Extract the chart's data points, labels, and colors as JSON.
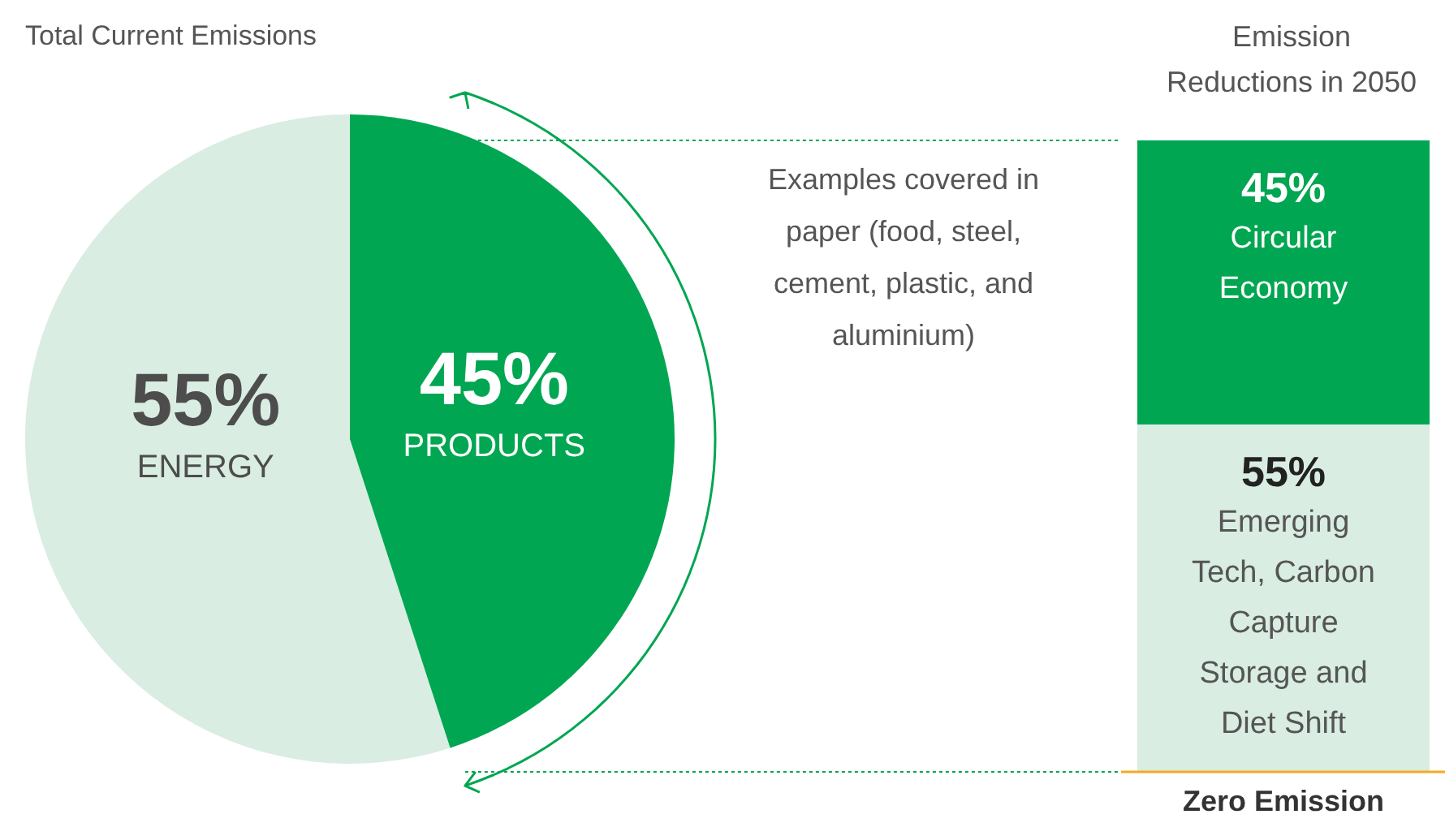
{
  "chart_data": [
    {
      "type": "pie",
      "title": "Total Current Emissions",
      "categories": [
        "ENERGY",
        "PRODUCTS"
      ],
      "values": [
        55,
        45
      ],
      "colors": [
        "#d9ede2",
        "#00a651"
      ],
      "value_labels": [
        "55%",
        "45%"
      ],
      "annotations": [
        "Examples covered in paper (food, steel, cement, plastic, and aluminium)"
      ]
    },
    {
      "type": "bar",
      "title": "Emission Reductions in 2050",
      "categories": [
        null
      ],
      "stacked": true,
      "ylim": [
        0,
        100
      ],
      "tick_labels": false,
      "series": [
        {
          "name": "Emerging Tech, Carbon Capture Storage and Diet Shift",
          "color": "#d9ede2",
          "values": [
            55
          ],
          "value_labels": [
            "55%"
          ]
        },
        {
          "name": "Circular Economy",
          "color": "#00a651",
          "values": [
            45
          ],
          "value_labels": [
            "45%"
          ]
        }
      ],
      "ref_lines": [
        {
          "axis": "y",
          "value": 0,
          "label": "Zero Emission",
          "color": "#f7a823"
        }
      ]
    }
  ]
}
